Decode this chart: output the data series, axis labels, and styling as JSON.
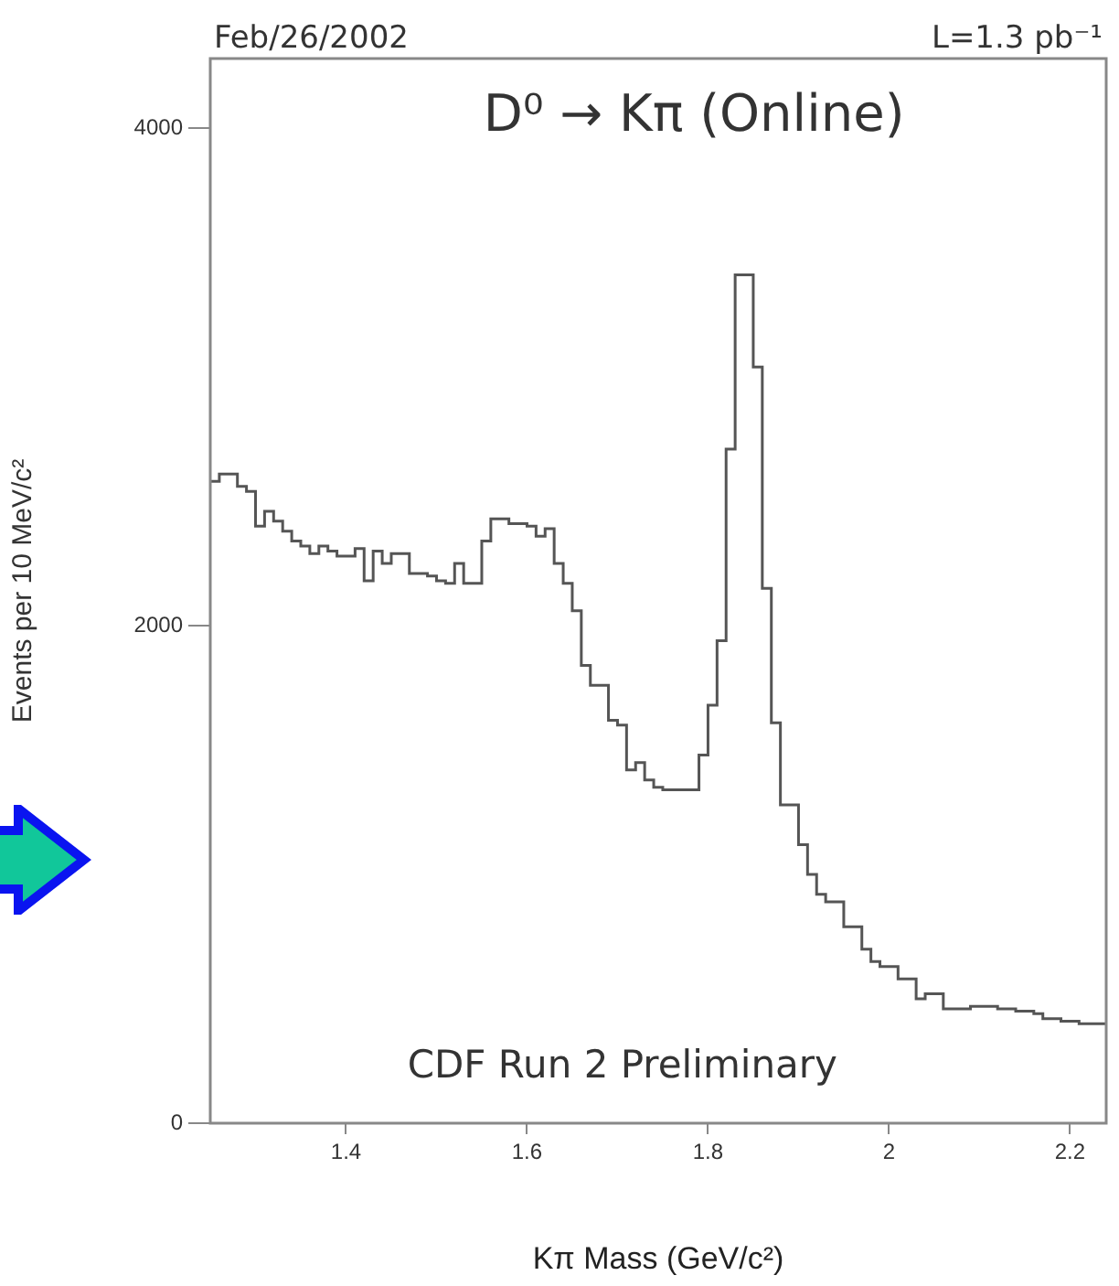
{
  "chart_data": {
    "type": "histogram",
    "title": "D⁰ → Kπ (Online)",
    "xlabel": "Kπ Mass (GeV/c²)",
    "ylabel": "Events per 10 MeV/c²",
    "annotations": [
      "Feb/26/2002",
      "L=1.3 pb⁻¹",
      "CDF Run 2 Preliminary"
    ],
    "bins": [
      1.25,
      1.26,
      1.27,
      1.28,
      1.29,
      1.3,
      1.31,
      1.32,
      1.33,
      1.34,
      1.35,
      1.36,
      1.37,
      1.38,
      1.39,
      1.4,
      1.41,
      1.42,
      1.43,
      1.44,
      1.45,
      1.46,
      1.47,
      1.48,
      1.49,
      1.5,
      1.51,
      1.52,
      1.53,
      1.54,
      1.55,
      1.56,
      1.57,
      1.58,
      1.59,
      1.6,
      1.61,
      1.62,
      1.63,
      1.64,
      1.65,
      1.66,
      1.67,
      1.68,
      1.69,
      1.7,
      1.71,
      1.72,
      1.73,
      1.74,
      1.75,
      1.76,
      1.77,
      1.78,
      1.79,
      1.8,
      1.81,
      1.82,
      1.83,
      1.84,
      1.85,
      1.86,
      1.87,
      1.88,
      1.89,
      1.9,
      1.91,
      1.92,
      1.93,
      1.94,
      1.95,
      1.96,
      1.97,
      1.98,
      1.99,
      2.0,
      2.01,
      2.02,
      2.03,
      2.04,
      2.05,
      2.06,
      2.07,
      2.08,
      2.09,
      2.1,
      2.11,
      2.12,
      2.13,
      2.14,
      2.15,
      2.16,
      2.17,
      2.18,
      2.19,
      2.2,
      2.21,
      2.22,
      2.23,
      2.24
    ],
    "values": [
      2580,
      2610,
      2610,
      2560,
      2540,
      2400,
      2460,
      2420,
      2380,
      2340,
      2320,
      2290,
      2320,
      2300,
      2280,
      2280,
      2310,
      2180,
      2300,
      2250,
      2290,
      2290,
      2210,
      2210,
      2200,
      2180,
      2170,
      2250,
      2170,
      2170,
      2340,
      2430,
      2430,
      2410,
      2410,
      2400,
      2360,
      2390,
      2250,
      2170,
      2060,
      1840,
      1760,
      1760,
      1620,
      1600,
      1420,
      1450,
      1380,
      1350,
      1340,
      1340,
      1340,
      1340,
      1480,
      1680,
      1940,
      2710,
      3410,
      3410,
      3040,
      2150,
      1610,
      1280,
      1280,
      1120,
      1000,
      920,
      890,
      890,
      790,
      790,
      700,
      650,
      630,
      630,
      580,
      580,
      500,
      520,
      520,
      460,
      460,
      460,
      470,
      470,
      470,
      460,
      460,
      450,
      450,
      440,
      420,
      420,
      410,
      410,
      400,
      400,
      400
    ],
    "color": "#555555",
    "xlim": [
      1.25,
      2.24
    ],
    "xticks": [
      1.4,
      1.6,
      1.8,
      2,
      2.2
    ],
    "ylim": [
      0,
      4280
    ],
    "yticks": [
      0,
      2000,
      4000
    ],
    "grid": false,
    "legend": false
  }
}
